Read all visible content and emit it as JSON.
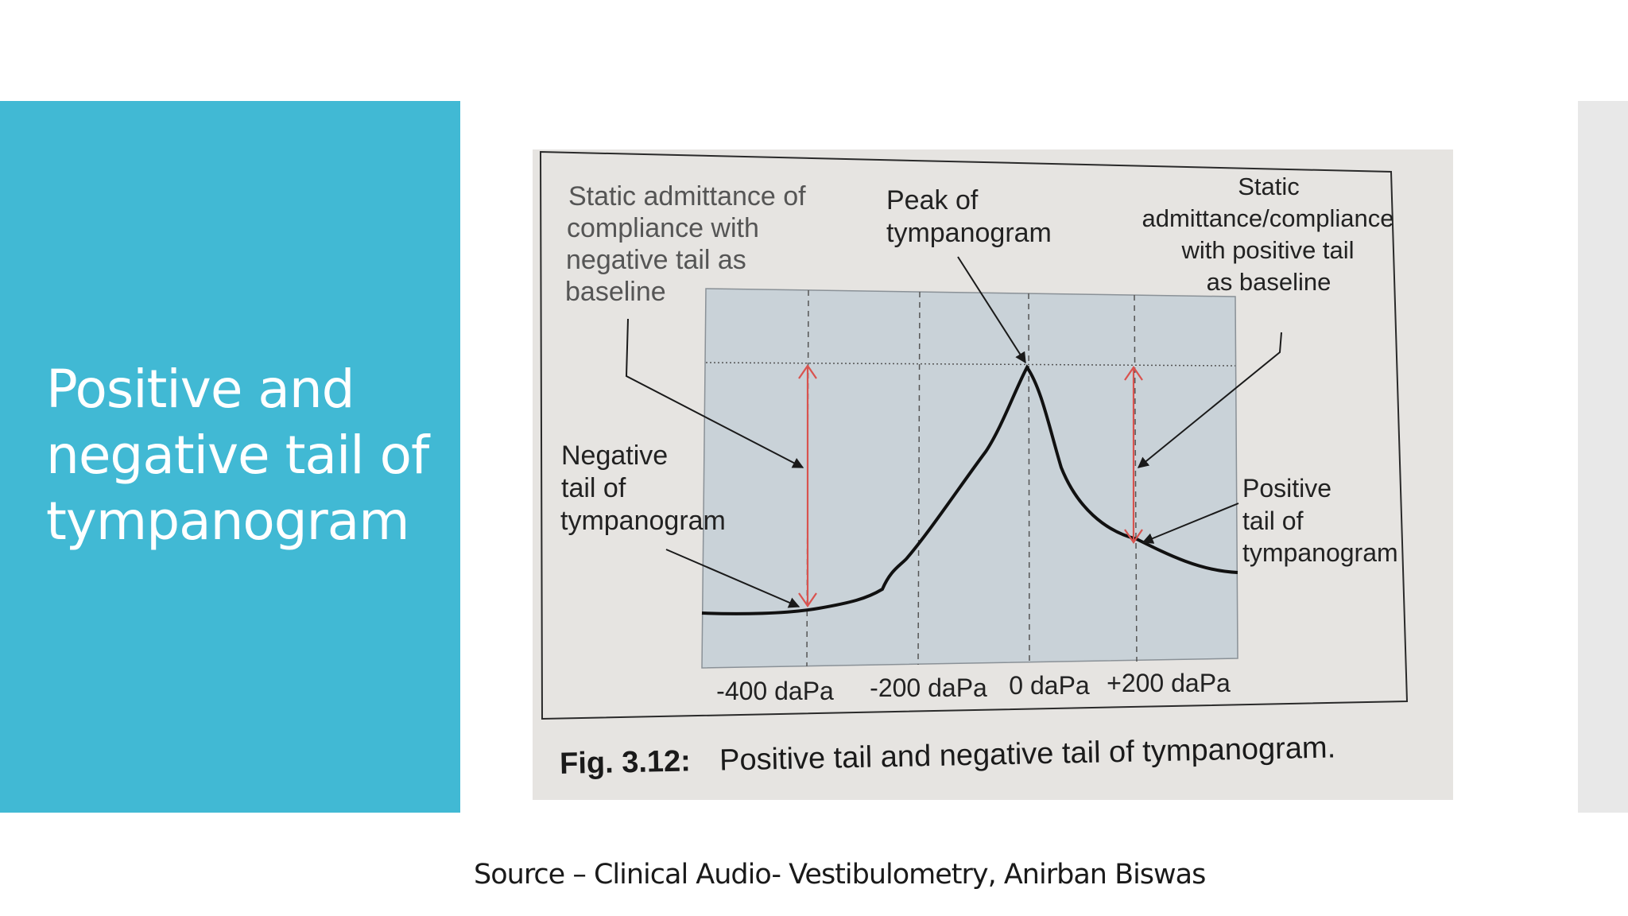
{
  "slide": {
    "title_lines": [
      "Positive and",
      "negative tail of",
      "tympanogram"
    ],
    "source": "Source – Clinical Audio- Vestibulometry, Anirban Biswas"
  },
  "figure": {
    "label_static_negative": [
      "Static admittance of",
      "compliance with",
      "negative tail as",
      "baseline"
    ],
    "label_peak": [
      "Peak of",
      "tympanogram"
    ],
    "label_static_positive": [
      "Static",
      "admittance/compliance",
      "with positive tail",
      "as baseline"
    ],
    "label_negative_tail": [
      "Negative",
      "tail of",
      "tympanogram"
    ],
    "label_positive_tail": [
      "Positive",
      "tail of",
      "tympanogram"
    ],
    "x_ticks": [
      "-400 daPa",
      "-200 daPa",
      "0 daPa",
      "+200 daPa"
    ],
    "caption_bold": "Fig. 3.12:",
    "caption_text": "Positive tail and negative tail of tympanogram."
  },
  "colors": {
    "panel": "#41b9d4",
    "plot_fill": "#c9d2d8",
    "arrow_red": "#d9534f"
  }
}
